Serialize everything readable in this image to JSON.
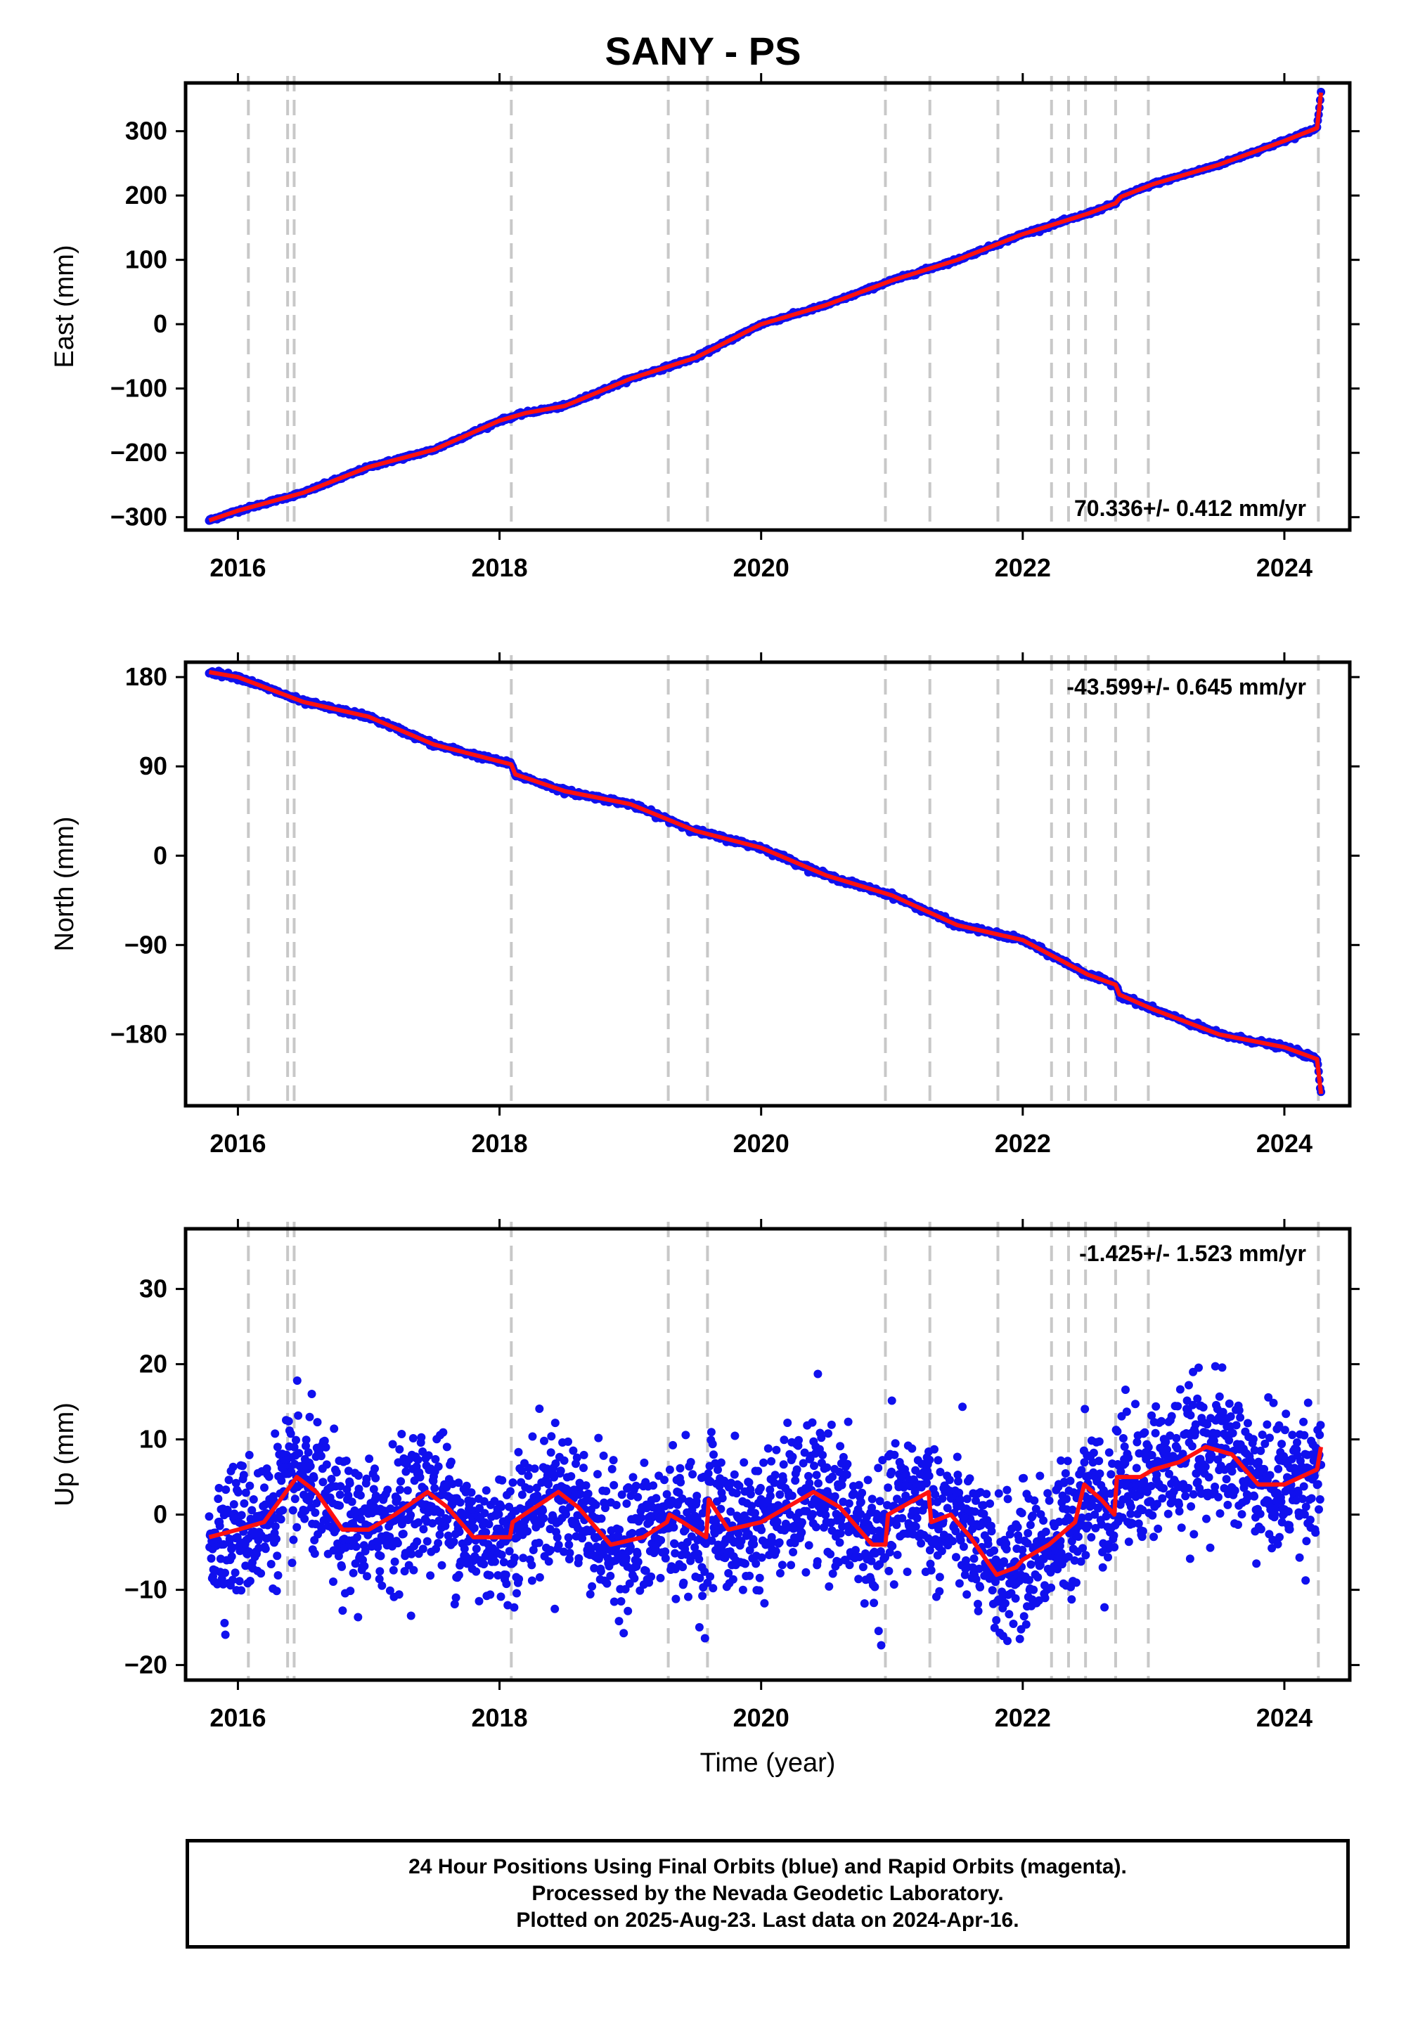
{
  "title": "SANY - PS",
  "footer": {
    "line1": "24 Hour Positions Using Final Orbits (blue) and Rapid Orbits (magenta).",
    "line2": "Processed by the Nevada Geodetic Laboratory.",
    "line3": "Plotted on 2025-Aug-23. Last data on 2024-Apr-16."
  },
  "colors": {
    "data": "#1010ee",
    "model": "#ff1010",
    "steps": "#c8c8c8",
    "frame": "#000000"
  },
  "chart_data": [
    {
      "type": "scatter",
      "ylabel": "East (mm)",
      "xlabel": "",
      "xlim": [
        2015.6,
        2024.5
      ],
      "ylim": [
        -320,
        375
      ],
      "xticks": [
        2016,
        2018,
        2020,
        2022,
        2024
      ],
      "yticks": [
        -300,
        -200,
        -100,
        0,
        100,
        200,
        300
      ],
      "rate_label": "70.336+/- 0.412 mm/yr",
      "rate_position": "bottom-right",
      "step_times": [
        2016.08,
        2016.38,
        2016.43,
        2018.09,
        2019.29,
        2019.59,
        2020.95,
        2021.29,
        2021.81,
        2022.22,
        2022.35,
        2022.48,
        2022.71,
        2022.96,
        2024.26
      ],
      "series": [
        {
          "values": [
            [
              2015.78,
              -305
            ],
            [
              2016.0,
              -290
            ],
            [
              2016.5,
              -262
            ],
            [
              2017.0,
              -222
            ],
            [
              2017.5,
              -195
            ],
            [
              2018.0,
              -150
            ],
            [
              2018.2,
              -138
            ],
            [
              2018.5,
              -127
            ],
            [
              2019.0,
              -85
            ],
            [
              2019.5,
              -52
            ],
            [
              2020.0,
              0
            ],
            [
              2020.5,
              30
            ],
            [
              2021.0,
              68
            ],
            [
              2021.5,
              100
            ],
            [
              2022.0,
              140
            ],
            [
              2022.5,
              172
            ],
            [
              2022.71,
              188
            ],
            [
              2022.75,
              198
            ],
            [
              2023.0,
              218
            ],
            [
              2023.5,
              248
            ],
            [
              2024.0,
              285
            ],
            [
              2024.25,
              305
            ],
            [
              2024.28,
              360
            ]
          ]
        }
      ]
    },
    {
      "type": "scatter",
      "ylabel": "North (mm)",
      "xlabel": "",
      "xlim": [
        2015.6,
        2024.5
      ],
      "ylim": [
        -252,
        195
      ],
      "xticks": [
        2016,
        2018,
        2020,
        2022,
        2024
      ],
      "yticks": [
        -180,
        -90,
        0,
        90,
        180
      ],
      "rate_label": "-43.599+/- 0.645 mm/yr",
      "rate_position": "top-right",
      "step_times": [
        2016.08,
        2016.38,
        2016.43,
        2018.09,
        2019.29,
        2019.59,
        2020.95,
        2021.29,
        2021.81,
        2022.22,
        2022.35,
        2022.48,
        2022.71,
        2022.96,
        2024.26
      ],
      "series": [
        {
          "values": [
            [
              2015.78,
              185
            ],
            [
              2016.0,
              180
            ],
            [
              2016.5,
              155
            ],
            [
              2017.0,
              140
            ],
            [
              2017.5,
              112
            ],
            [
              2018.09,
              92
            ],
            [
              2018.12,
              82
            ],
            [
              2018.5,
              65
            ],
            [
              2019.0,
              52
            ],
            [
              2019.5,
              25
            ],
            [
              2020.0,
              8
            ],
            [
              2020.5,
              -20
            ],
            [
              2021.0,
              -40
            ],
            [
              2021.5,
              -70
            ],
            [
              2022.0,
              -85
            ],
            [
              2022.5,
              -120
            ],
            [
              2022.71,
              -130
            ],
            [
              2022.74,
              -140
            ],
            [
              2023.0,
              -155
            ],
            [
              2023.5,
              -180
            ],
            [
              2024.0,
              -193
            ],
            [
              2024.25,
              -205
            ],
            [
              2024.28,
              -240
            ]
          ]
        }
      ]
    },
    {
      "type": "scatter",
      "ylabel": "Up (mm)",
      "xlabel": "Time (year)",
      "xlim": [
        2015.6,
        2024.5
      ],
      "ylim": [
        -22,
        38
      ],
      "xticks": [
        2016,
        2018,
        2020,
        2022,
        2024
      ],
      "yticks": [
        -20,
        -10,
        0,
        10,
        20,
        30
      ],
      "rate_label": "-1.425+/- 1.523 mm/yr",
      "rate_position": "top-right",
      "step_times": [
        2016.08,
        2016.38,
        2016.43,
        2018.09,
        2019.29,
        2019.59,
        2020.95,
        2021.29,
        2021.81,
        2022.22,
        2022.35,
        2022.48,
        2022.71,
        2022.96,
        2024.26
      ],
      "scatter_sd_mm": 4.5,
      "series": [
        {
          "values": [
            [
              2015.78,
              -3
            ],
            [
              2016.0,
              -2
            ],
            [
              2016.2,
              -1
            ],
            [
              2016.45,
              5
            ],
            [
              2016.6,
              3
            ],
            [
              2016.8,
              -2
            ],
            [
              2017.0,
              -2
            ],
            [
              2017.2,
              0
            ],
            [
              2017.45,
              3
            ],
            [
              2017.6,
              1
            ],
            [
              2017.8,
              -3
            ],
            [
              2018.08,
              -3
            ],
            [
              2018.1,
              -1
            ],
            [
              2018.45,
              3
            ],
            [
              2018.6,
              1
            ],
            [
              2018.85,
              -4
            ],
            [
              2019.1,
              -3
            ],
            [
              2019.28,
              -1
            ],
            [
              2019.3,
              0
            ],
            [
              2019.4,
              -1
            ],
            [
              2019.58,
              -3
            ],
            [
              2019.6,
              2
            ],
            [
              2019.75,
              -2
            ],
            [
              2020.0,
              -1
            ],
            [
              2020.4,
              3
            ],
            [
              2020.6,
              1
            ],
            [
              2020.85,
              -4
            ],
            [
              2020.95,
              -4
            ],
            [
              2020.97,
              0
            ],
            [
              2021.28,
              3
            ],
            [
              2021.3,
              -1
            ],
            [
              2021.45,
              0
            ],
            [
              2021.6,
              -3
            ],
            [
              2021.8,
              -8
            ],
            [
              2021.95,
              -7
            ],
            [
              2022.0,
              -6
            ],
            [
              2022.2,
              -4
            ],
            [
              2022.4,
              -1
            ],
            [
              2022.47,
              4
            ],
            [
              2022.6,
              2
            ],
            [
              2022.7,
              0
            ],
            [
              2022.72,
              5
            ],
            [
              2022.9,
              5
            ],
            [
              2023.0,
              6
            ],
            [
              2023.2,
              7
            ],
            [
              2023.4,
              9
            ],
            [
              2023.6,
              8
            ],
            [
              2023.8,
              4
            ],
            [
              2024.0,
              4
            ],
            [
              2024.25,
              6
            ],
            [
              2024.28,
              9
            ]
          ]
        }
      ]
    }
  ]
}
